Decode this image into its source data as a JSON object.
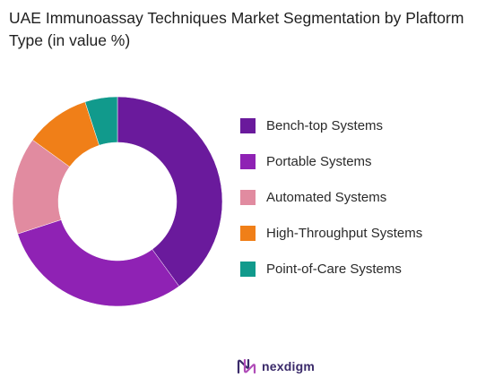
{
  "title": "UAE Immunoassay Techniques Market Segmentation by Plaftorm Type (in value %)",
  "brand": {
    "name": "nexdigm",
    "icon": "nexdigm-logo-icon"
  },
  "chart_data": {
    "type": "pie",
    "variant": "donut",
    "legend_position": "right",
    "slices": [
      {
        "label": "Bench-top Systems",
        "value": 40,
        "color": "#6a1a9c"
      },
      {
        "label": "Portable Systems",
        "value": 30,
        "color": "#8f22b4"
      },
      {
        "label": "Automated Systems",
        "value": 15,
        "color": "#e18ba0"
      },
      {
        "label": "High-Throughput Systems",
        "value": 10,
        "color": "#f07f18"
      },
      {
        "label": "Point-of-Care Systems",
        "value": 5,
        "color": "#119a8c"
      }
    ]
  }
}
